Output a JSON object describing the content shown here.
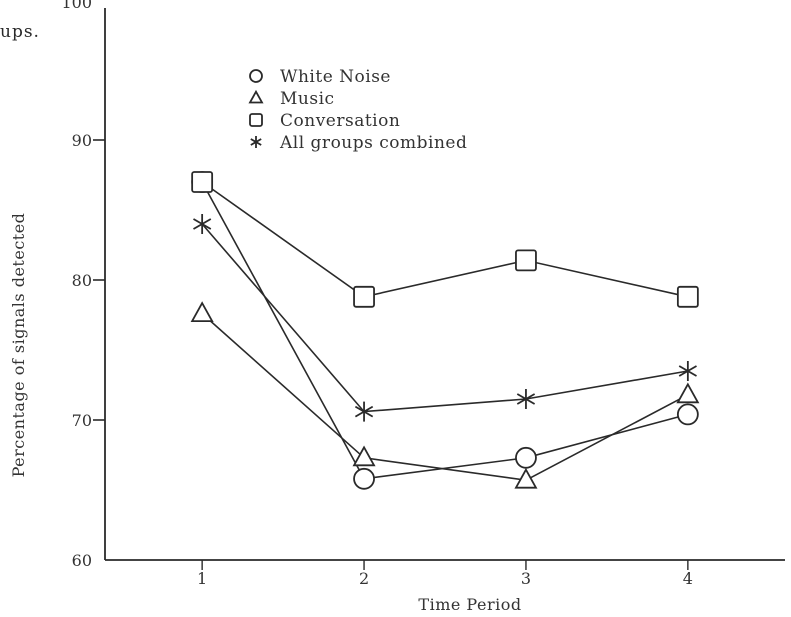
{
  "page": {
    "fragment_text": "ups."
  },
  "chart_data": {
    "type": "line",
    "title": "",
    "xlabel": "Time Period",
    "ylabel": "Percentage of signals detected",
    "categories": [
      1,
      2,
      3,
      4
    ],
    "xlim": [
      0.4,
      4.6
    ],
    "ylim": [
      60,
      100
    ],
    "yticks": [
      60,
      70,
      80,
      90,
      100
    ],
    "grid": false,
    "legend_position": "top-center",
    "series": [
      {
        "name": "White Noise",
        "marker": "circle",
        "values": [
          87,
          65.8,
          67.3,
          70.4
        ]
      },
      {
        "name": "Music",
        "marker": "triangle",
        "values": [
          77.6,
          67.3,
          65.7,
          71.8
        ]
      },
      {
        "name": "Conversation",
        "marker": "square",
        "values": [
          87,
          78.8,
          81.4,
          78.8
        ]
      },
      {
        "name": "All groups combined",
        "marker": "asterisk",
        "values": [
          84,
          70.6,
          71.5,
          73.5
        ]
      }
    ],
    "colors": {
      "ink": "#2a2a2a",
      "background": "#ffffff"
    }
  }
}
